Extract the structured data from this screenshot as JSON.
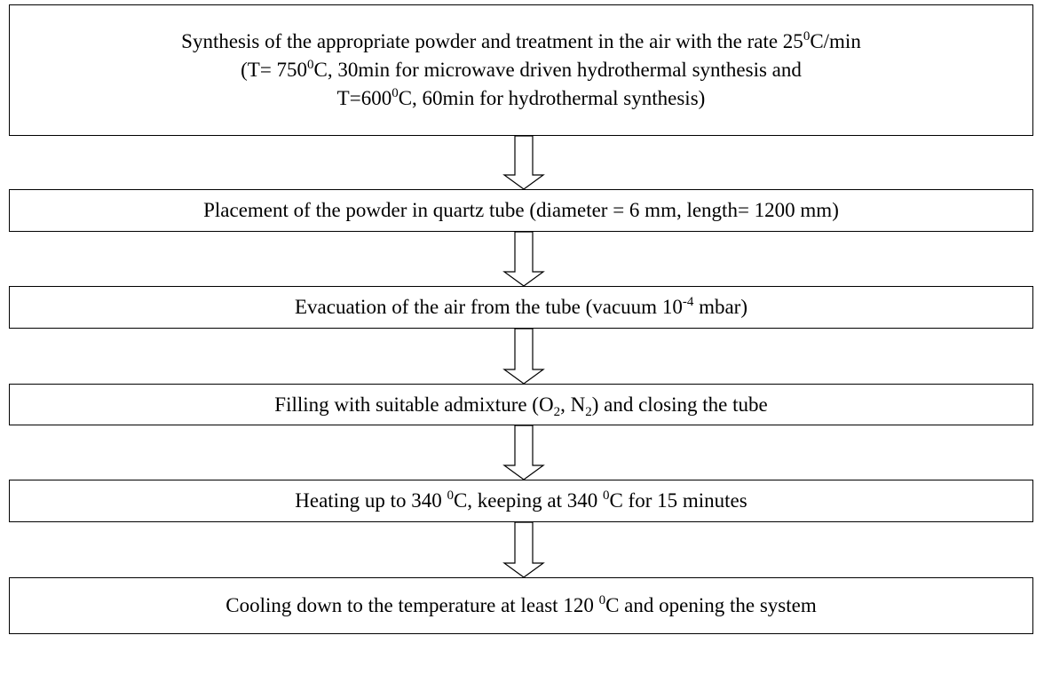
{
  "steps": [
    {
      "lines": [
        [
          {
            "text": "Synthesis of the appropriate powder and treatment in the air with the rate 25"
          },
          {
            "sup": "0"
          },
          {
            "text": "C/min"
          }
        ],
        [
          {
            "text": "(T= 750"
          },
          {
            "sup": "0"
          },
          {
            "text": "C, 30min for microwave driven hydrothermal synthesis and"
          }
        ],
        [
          {
            "text": "T=600"
          },
          {
            "sup": "0"
          },
          {
            "text": "C, 60min for hydrothermal synthesis)"
          }
        ]
      ]
    },
    {
      "lines": [
        [
          {
            "text": "Placement of the powder in quartz tube (diameter = 6 mm, length= 1200 mm)"
          }
        ]
      ]
    },
    {
      "lines": [
        [
          {
            "text": "Evacuation of the air from the tube (vacuum 10"
          },
          {
            "sup": "-4"
          },
          {
            "text": " mbar)"
          }
        ]
      ]
    },
    {
      "lines": [
        [
          {
            "text": "Filling with suitable admixture (O"
          },
          {
            "sub": "2"
          },
          {
            "text": ", N"
          },
          {
            "sub": "2"
          },
          {
            "text": ") and closing the tube"
          }
        ]
      ]
    },
    {
      "lines": [
        [
          {
            "text": "Heating up to 340 "
          },
          {
            "sup": "0"
          },
          {
            "text": "C, keeping at 340 "
          },
          {
            "sup": "0"
          },
          {
            "text": "C for 15 minutes"
          }
        ]
      ]
    },
    {
      "lines": [
        [
          {
            "text": "Cooling down to the temperature at least 120 "
          },
          {
            "sup": "0"
          },
          {
            "text": "C and opening the system"
          }
        ]
      ]
    }
  ]
}
